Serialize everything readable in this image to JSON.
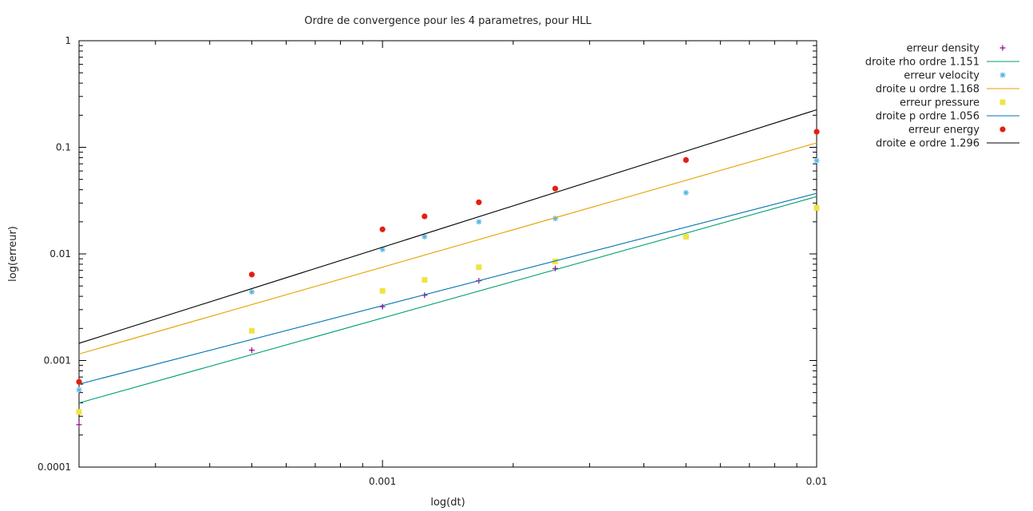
{
  "chart_data": {
    "type": "scatter",
    "title": "Ordre de convergence pour les 4 parametres, pour HLL",
    "xlabel": "log(dt)",
    "ylabel": "log(erreur)",
    "xscale": "log",
    "yscale": "log",
    "xlim": [
      0.0002,
      0.01
    ],
    "ylim": [
      0.0001,
      1
    ],
    "grid": false,
    "legend_position": "top-right outside",
    "x_ticks": [
      {
        "value": 0.001,
        "label": "0.001"
      },
      {
        "value": 0.01,
        "label": "0.01"
      }
    ],
    "y_ticks": [
      {
        "value": 0.0001,
        "label": "0.0001"
      },
      {
        "value": 0.001,
        "label": "0.001"
      },
      {
        "value": 0.01,
        "label": "0.01"
      },
      {
        "value": 0.1,
        "label": "0.1"
      },
      {
        "value": 1,
        "label": "1"
      }
    ],
    "series": [
      {
        "name": "erreur density",
        "kind": "points",
        "marker": "plus",
        "color": "#94008e",
        "x": [
          0.0002,
          0.0005,
          0.001,
          0.00125,
          0.001667,
          0.0025,
          0.005,
          0.01
        ],
        "y": [
          0.00025,
          0.00125,
          0.0032,
          0.0041,
          0.0056,
          0.0073,
          0.0145,
          0.027
        ]
      },
      {
        "name": "droite rho ordre 1.151",
        "kind": "line",
        "color": "#009e73",
        "x": [
          0.0002,
          0.01
        ],
        "y": [
          0.0004,
          0.0345
        ]
      },
      {
        "name": "erreur velocity",
        "kind": "points",
        "marker": "star",
        "color": "#56b4e9",
        "x": [
          0.0002,
          0.0005,
          0.001,
          0.00125,
          0.001667,
          0.0025,
          0.005,
          0.01
        ],
        "y": [
          0.00053,
          0.0044,
          0.011,
          0.0145,
          0.02,
          0.0215,
          0.0375,
          0.075
        ]
      },
      {
        "name": "droite u ordre 1.168",
        "kind": "line",
        "color": "#e69f00",
        "x": [
          0.0002,
          0.01
        ],
        "y": [
          0.00115,
          0.11
        ]
      },
      {
        "name": "erreur pressure",
        "kind": "points",
        "marker": "square",
        "color": "#f0e442",
        "x": [
          0.0002,
          0.0005,
          0.001,
          0.00125,
          0.001667,
          0.0025,
          0.005,
          0.01
        ],
        "y": [
          0.00033,
          0.0019,
          0.0045,
          0.0057,
          0.0075,
          0.0085,
          0.0145,
          0.027
        ]
      },
      {
        "name": "droite p ordre 1.056",
        "kind": "line",
        "color": "#0072b2",
        "x": [
          0.0002,
          0.01
        ],
        "y": [
          0.0006,
          0.037
        ]
      },
      {
        "name": "erreur energy",
        "kind": "points",
        "marker": "circle",
        "color": "#e51e10",
        "x": [
          0.0002,
          0.0005,
          0.001,
          0.00125,
          0.001667,
          0.0025,
          0.005,
          0.01
        ],
        "y": [
          0.00063,
          0.0064,
          0.017,
          0.0225,
          0.0305,
          0.041,
          0.076,
          0.14
        ]
      },
      {
        "name": "droite e ordre 1.296",
        "kind": "line",
        "color": "#000000",
        "x": [
          0.0002,
          0.01
        ],
        "y": [
          0.00145,
          0.225
        ]
      }
    ]
  }
}
